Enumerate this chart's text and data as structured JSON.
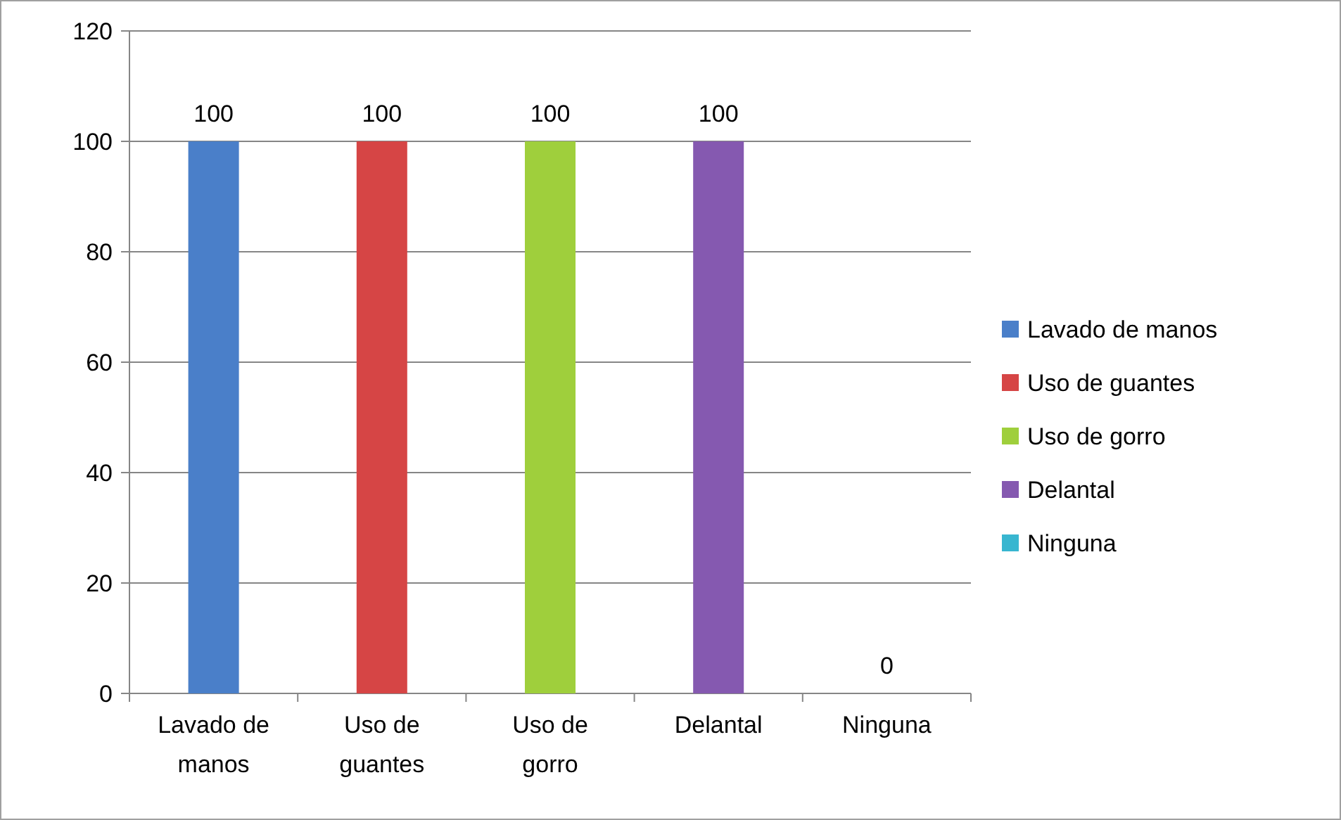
{
  "chart_data": {
    "type": "bar",
    "categories": [
      "Lavado de manos",
      "Uso de guantes",
      "Uso de gorro",
      "Delantal",
      "Ninguna"
    ],
    "series": [
      {
        "name": "Lavado de manos",
        "color": "#4a7fc9",
        "values": [
          100,
          null,
          null,
          null,
          null
        ]
      },
      {
        "name": "Uso de guantes",
        "color": "#d64545",
        "values": [
          null,
          100,
          null,
          null,
          null
        ]
      },
      {
        "name": "Uso de gorro",
        "color": "#9fcf3c",
        "values": [
          null,
          null,
          100,
          null,
          null
        ]
      },
      {
        "name": "Delantal",
        "color": "#8559b0",
        "values": [
          null,
          null,
          null,
          100,
          null
        ]
      },
      {
        "name": "Ninguna",
        "color": "#38b6d0",
        "values": [
          null,
          null,
          null,
          null,
          0
        ]
      }
    ],
    "ylim": [
      0,
      120
    ],
    "yticks": [
      0,
      20,
      40,
      60,
      80,
      100,
      120
    ],
    "grid": "y",
    "data_labels": true,
    "legend": "right"
  }
}
